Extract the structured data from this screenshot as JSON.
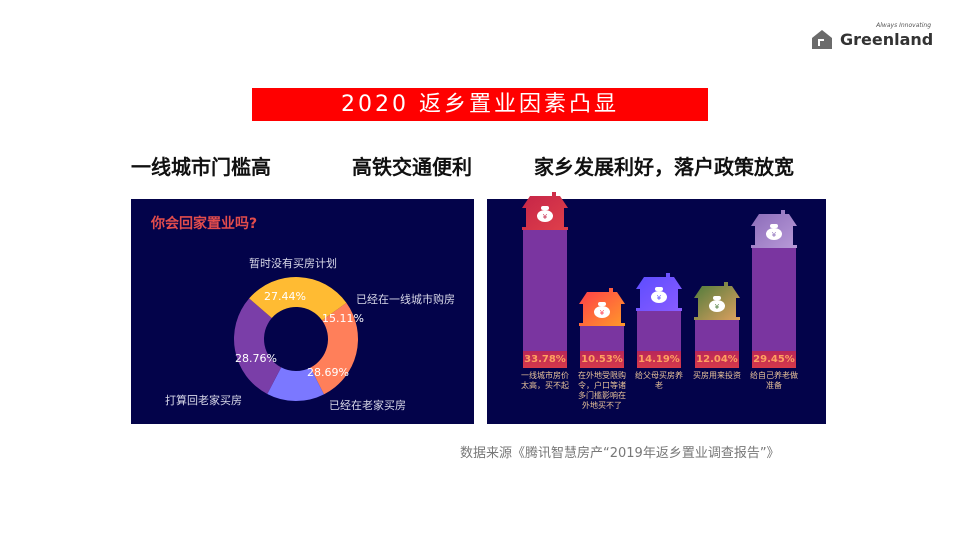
{
  "logo": {
    "tagline": "Always Innovating",
    "brand": "Greenland"
  },
  "title": "2020 返乡置业因素凸显",
  "factors": [
    "一线城市门槛高",
    "高铁交通便利",
    "家乡发展利好，落户政策放宽"
  ],
  "left_panel": {
    "title": "你会回家置业吗?",
    "labels": {
      "no_plan": "暂时没有买房计划",
      "tier1": "已经在一线城市购房",
      "hometown_bought": "已经在老家买房",
      "plan_home": "打算回老家买房"
    }
  },
  "right_panel": {
    "captions": [
      "一线城市房价太高，买不起",
      "在外地受限购令，户口等诸多门槛影响在外地买不了",
      "给父母买房养老",
      "买房用来投资",
      "给自己养老做准备"
    ]
  },
  "source": "数据来源《腾讯智慧房产“2019年返乡置业调查报告”》",
  "chart_data": [
    {
      "type": "pie",
      "title": "你会回家置业吗?",
      "categories": [
        "暂时没有买房计划",
        "已经在一线城市购房",
        "已经在老家买房",
        "打算回老家买房"
      ],
      "values": [
        27.44,
        15.11,
        28.69,
        28.76
      ],
      "colors": [
        "#ff7f5a",
        "#7b78ff",
        "#7a3ea8",
        "#ffbb33"
      ],
      "donut": true
    },
    {
      "type": "bar",
      "categories": [
        "一线城市房价太高，买不起",
        "在外地受限购令，户口等诸多门槛影响在外地买不了",
        "给父母买房养老",
        "买房用来投资",
        "给自己养老做准备"
      ],
      "values": [
        33.78,
        10.53,
        14.19,
        12.04,
        29.45
      ],
      "labels": [
        "33.78%",
        "10.53%",
        "14.19%",
        "12.04%",
        "29.45%"
      ],
      "ylim": [
        0,
        40
      ]
    }
  ]
}
